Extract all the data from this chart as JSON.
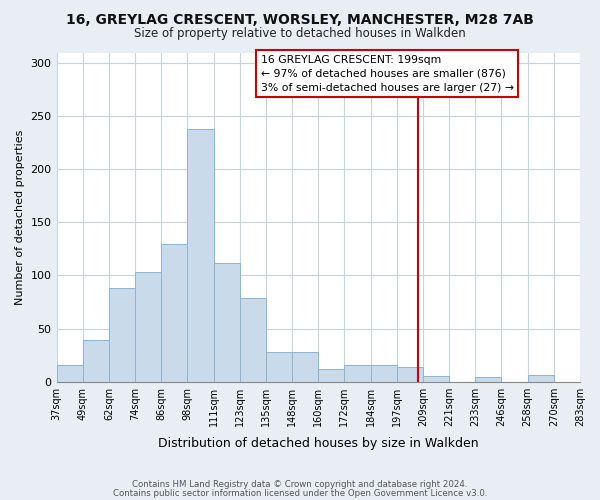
{
  "title": "16, GREYLAG CRESCENT, WORSLEY, MANCHESTER, M28 7AB",
  "subtitle": "Size of property relative to detached houses in Walkden",
  "xlabel": "Distribution of detached houses by size in Walkden",
  "ylabel": "Number of detached properties",
  "footer_line1": "Contains HM Land Registry data © Crown copyright and database right 2024.",
  "footer_line2": "Contains public sector information licensed under the Open Government Licence v3.0.",
  "bin_labels": [
    "37sqm",
    "49sqm",
    "62sqm",
    "74sqm",
    "86sqm",
    "98sqm",
    "111sqm",
    "123sqm",
    "135sqm",
    "148sqm",
    "160sqm",
    "172sqm",
    "184sqm",
    "197sqm",
    "209sqm",
    "221sqm",
    "233sqm",
    "246sqm",
    "258sqm",
    "270sqm",
    "283sqm"
  ],
  "bar_heights": [
    16,
    39,
    88,
    103,
    130,
    238,
    112,
    79,
    28,
    28,
    12,
    16,
    16,
    14,
    5,
    0,
    4,
    0,
    6,
    0
  ],
  "bar_color": "#c9daea",
  "bar_edge_color": "#8fb4d0",
  "vline_color": "#cc0000",
  "annotation_title": "16 GREYLAG CRESCENT: 199sqm",
  "annotation_line2": "← 97% of detached houses are smaller (876)",
  "annotation_line3": "3% of semi-detached houses are larger (27) →",
  "annotation_box_facecolor": "#ffffff",
  "annotation_box_edgecolor": "#cc0000",
  "ylim": [
    0,
    310
  ],
  "yticks": [
    0,
    50,
    100,
    150,
    200,
    250,
    300
  ],
  "background_color": "#e8eef4",
  "plot_background_color": "#ffffff",
  "grid_color": "#c8d4dc"
}
